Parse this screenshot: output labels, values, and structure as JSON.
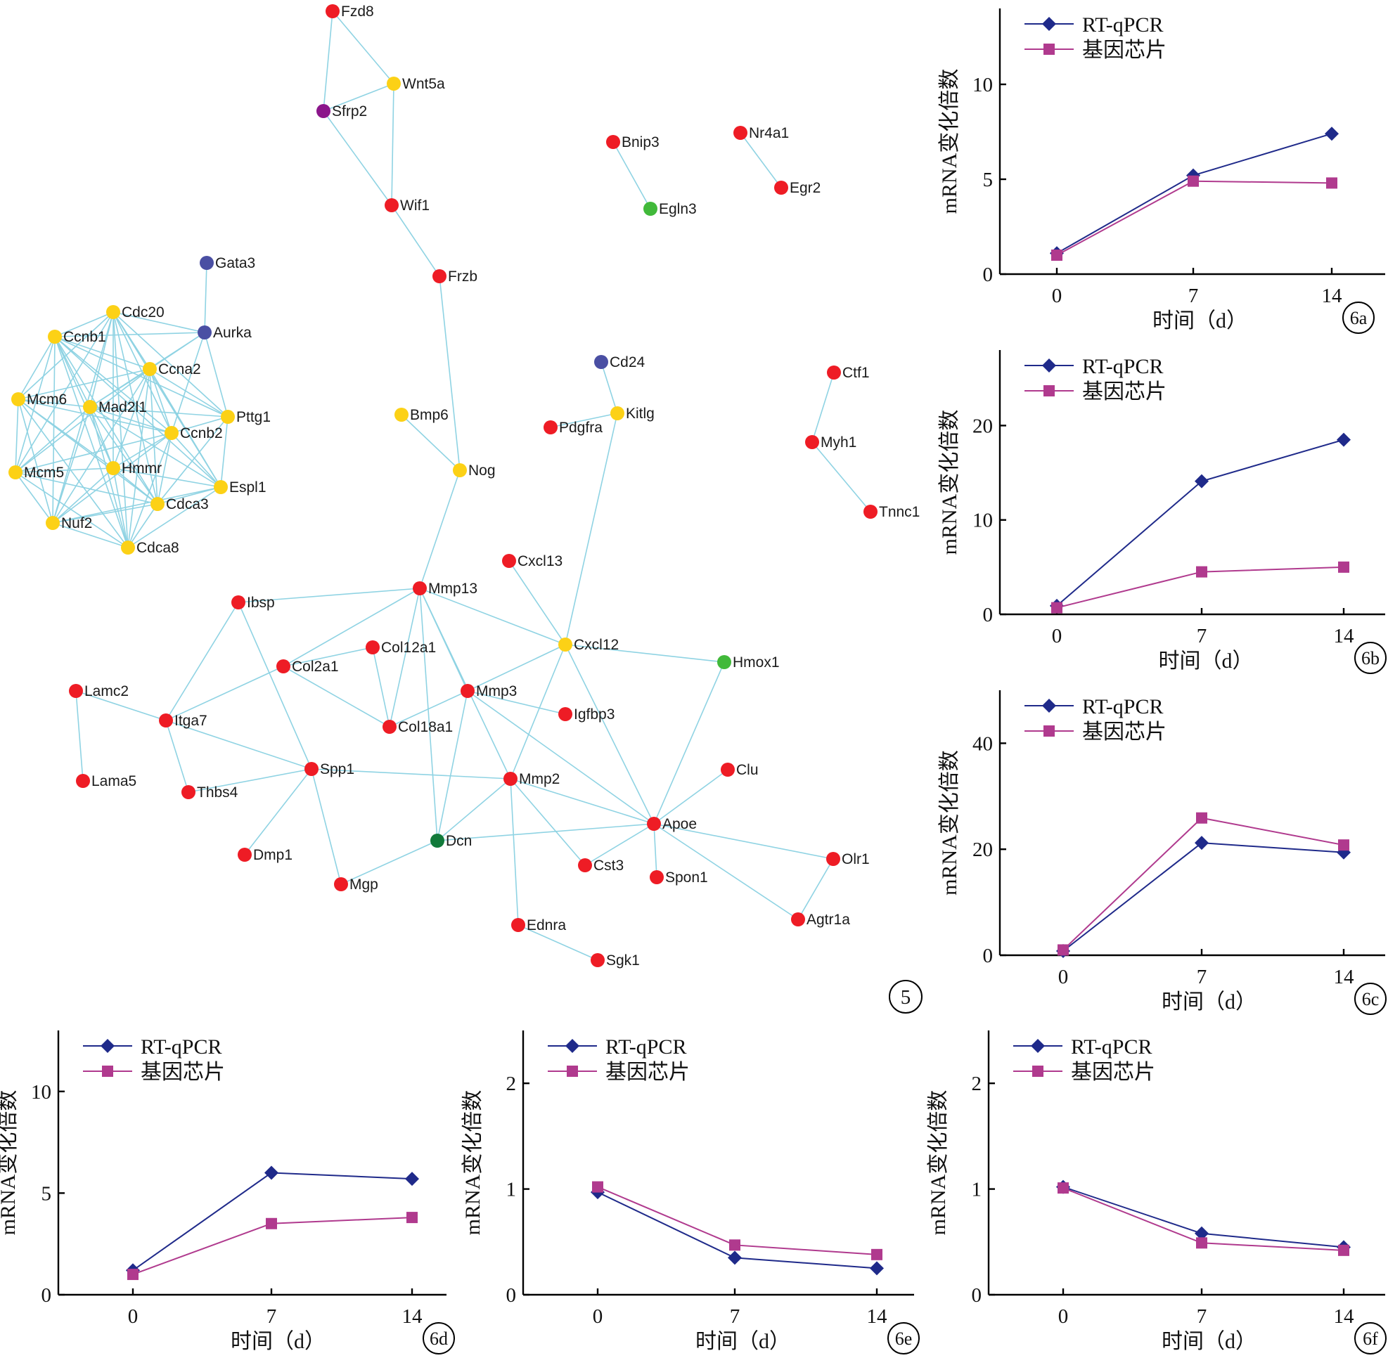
{
  "network": {
    "panel_label": "5",
    "colors": {
      "red": "#ee1c25",
      "yellow": "#fcd116",
      "blue": "#4a4fa3",
      "purple": "#8b168b",
      "green": "#41b93a",
      "darkgreen": "#117a3a",
      "edge": "#8fd3e3"
    },
    "nodes": [
      {
        "id": "Fzd8",
        "color": "red"
      },
      {
        "id": "Wnt5a",
        "color": "yellow"
      },
      {
        "id": "Sfrp2",
        "color": "purple"
      },
      {
        "id": "Wif1",
        "color": "red"
      },
      {
        "id": "Frzb",
        "color": "red"
      },
      {
        "id": "Bnip3",
        "color": "red"
      },
      {
        "id": "Egln3",
        "color": "green"
      },
      {
        "id": "Nr4a1",
        "color": "red"
      },
      {
        "id": "Egr2",
        "color": "red"
      },
      {
        "id": "Gata3",
        "color": "blue"
      },
      {
        "id": "Aurka",
        "color": "blue"
      },
      {
        "id": "Cdc20",
        "color": "yellow"
      },
      {
        "id": "Ccnb1",
        "color": "yellow"
      },
      {
        "id": "Ccna2",
        "color": "yellow"
      },
      {
        "id": "Mcm6",
        "color": "yellow"
      },
      {
        "id": "Mad2l1",
        "color": "yellow"
      },
      {
        "id": "Pttg1",
        "color": "yellow"
      },
      {
        "id": "Ccnb2",
        "color": "yellow"
      },
      {
        "id": "Mcm5",
        "color": "yellow"
      },
      {
        "id": "Hmmr",
        "color": "yellow"
      },
      {
        "id": "Espl1",
        "color": "yellow"
      },
      {
        "id": "Cdca3",
        "color": "yellow"
      },
      {
        "id": "Nuf2",
        "color": "yellow"
      },
      {
        "id": "Cdca8",
        "color": "yellow"
      },
      {
        "id": "Cd24",
        "color": "blue"
      },
      {
        "id": "Kitlg",
        "color": "yellow"
      },
      {
        "id": "Pdgfra",
        "color": "red"
      },
      {
        "id": "Bmp6",
        "color": "yellow"
      },
      {
        "id": "Nog",
        "color": "yellow"
      },
      {
        "id": "Ctf1",
        "color": "red"
      },
      {
        "id": "Myh1",
        "color": "red"
      },
      {
        "id": "Tnnc1",
        "color": "red"
      },
      {
        "id": "Cxcl13",
        "color": "red"
      },
      {
        "id": "Ibsp",
        "color": "red"
      },
      {
        "id": "Mmp13",
        "color": "red"
      },
      {
        "id": "Col12a1",
        "color": "red"
      },
      {
        "id": "Cxcl12",
        "color": "yellow"
      },
      {
        "id": "Col2a1",
        "color": "red"
      },
      {
        "id": "Hmox1",
        "color": "green"
      },
      {
        "id": "Lamc2",
        "color": "red"
      },
      {
        "id": "Mmp3",
        "color": "red"
      },
      {
        "id": "Itga7",
        "color": "red"
      },
      {
        "id": "Igfbp3",
        "color": "red"
      },
      {
        "id": "Col18a1",
        "color": "red"
      },
      {
        "id": "Clu",
        "color": "red"
      },
      {
        "id": "Spp1",
        "color": "red"
      },
      {
        "id": "Lama5",
        "color": "red"
      },
      {
        "id": "Mmp2",
        "color": "red"
      },
      {
        "id": "Thbs4",
        "color": "red"
      },
      {
        "id": "Apoe",
        "color": "red"
      },
      {
        "id": "Dcn",
        "color": "darkgreen"
      },
      {
        "id": "Dmp1",
        "color": "red"
      },
      {
        "id": "Olr1",
        "color": "red"
      },
      {
        "id": "Cst3",
        "color": "red"
      },
      {
        "id": "Spon1",
        "color": "red"
      },
      {
        "id": "Mgp",
        "color": "red"
      },
      {
        "id": "Agtr1a",
        "color": "red"
      },
      {
        "id": "Ednra",
        "color": "red"
      },
      {
        "id": "Sgk1",
        "color": "red"
      }
    ],
    "edges": [
      [
        "Fzd8",
        "Wnt5a"
      ],
      [
        "Fzd8",
        "Sfrp2"
      ],
      [
        "Sfrp2",
        "Wnt5a"
      ],
      [
        "Sfrp2",
        "Wif1"
      ],
      [
        "Wnt5a",
        "Wif1"
      ],
      [
        "Wif1",
        "Frzb"
      ],
      [
        "Frzb",
        "Nog"
      ],
      [
        "Bnip3",
        "Egln3"
      ],
      [
        "Nr4a1",
        "Egr2"
      ],
      [
        "Gata3",
        "Aurka"
      ],
      [
        "Cd24",
        "Kitlg"
      ],
      [
        "Pdgfra",
        "Kitlg"
      ],
      [
        "Kitlg",
        "Cxcl12"
      ],
      [
        "Bmp6",
        "Nog"
      ],
      [
        "Nog",
        "Mmp13"
      ],
      [
        "Ctf1",
        "Myh1"
      ],
      [
        "Myh1",
        "Tnnc1"
      ],
      [
        "Cxcl13",
        "Cxcl12"
      ],
      [
        "Ibsp",
        "Mmp13"
      ],
      [
        "Ibsp",
        "Itga7"
      ],
      [
        "Ibsp",
        "Spp1"
      ],
      [
        "Mmp13",
        "Cxcl12"
      ],
      [
        "Mmp13",
        "Col2a1"
      ],
      [
        "Mmp13",
        "Col18a1"
      ],
      [
        "Mmp13",
        "Mmp3"
      ],
      [
        "Mmp13",
        "Dcn"
      ],
      [
        "Mmp13",
        "Mmp2"
      ],
      [
        "Col12a1",
        "Col2a1"
      ],
      [
        "Col12a1",
        "Col18a1"
      ],
      [
        "Cxcl12",
        "Mmp3"
      ],
      [
        "Cxcl12",
        "Hmox1"
      ],
      [
        "Cxcl12",
        "Apoe"
      ],
      [
        "Cxcl12",
        "Mmp2"
      ],
      [
        "Col2a1",
        "Itga7"
      ],
      [
        "Col2a1",
        "Col18a1"
      ],
      [
        "Hmox1",
        "Apoe"
      ],
      [
        "Lamc2",
        "Itga7"
      ],
      [
        "Lamc2",
        "Lama5"
      ],
      [
        "Mmp3",
        "Igfbp3"
      ],
      [
        "Mmp3",
        "Col18a1"
      ],
      [
        "Mmp3",
        "Apoe"
      ],
      [
        "Mmp3",
        "Dcn"
      ],
      [
        "Itga7",
        "Spp1"
      ],
      [
        "Itga7",
        "Thbs4"
      ],
      [
        "Clu",
        "Apoe"
      ],
      [
        "Spp1",
        "Mmp2"
      ],
      [
        "Spp1",
        "Thbs4"
      ],
      [
        "Spp1",
        "Dmp1"
      ],
      [
        "Spp1",
        "Mgp"
      ],
      [
        "Mmp2",
        "Apoe"
      ],
      [
        "Mmp2",
        "Cst3"
      ],
      [
        "Mmp2",
        "Ednra"
      ],
      [
        "Mmp2",
        "Dcn"
      ],
      [
        "Apoe",
        "Dcn"
      ],
      [
        "Apoe",
        "Olr1"
      ],
      [
        "Apoe",
        "Spon1"
      ],
      [
        "Apoe",
        "Agtr1a"
      ],
      [
        "Apoe",
        "Cst3"
      ],
      [
        "Dcn",
        "Mgp"
      ],
      [
        "Olr1",
        "Agtr1a"
      ],
      [
        "Ednra",
        "Sgk1"
      ],
      [
        "Cdc20",
        "Ccnb1"
      ],
      [
        "Cdc20",
        "Ccna2"
      ],
      [
        "Cdc20",
        "Mcm6"
      ],
      [
        "Cdc20",
        "Mad2l1"
      ],
      [
        "Cdc20",
        "Pttg1"
      ],
      [
        "Cdc20",
        "Ccnb2"
      ],
      [
        "Cdc20",
        "Mcm5"
      ],
      [
        "Cdc20",
        "Hmmr"
      ],
      [
        "Cdc20",
        "Espl1"
      ],
      [
        "Cdc20",
        "Cdca3"
      ],
      [
        "Cdc20",
        "Nuf2"
      ],
      [
        "Cdc20",
        "Cdca8"
      ],
      [
        "Cdc20",
        "Aurka"
      ],
      [
        "Ccnb1",
        "Ccna2"
      ],
      [
        "Ccnb1",
        "Mcm6"
      ],
      [
        "Ccnb1",
        "Mad2l1"
      ],
      [
        "Ccnb1",
        "Pttg1"
      ],
      [
        "Ccnb1",
        "Ccnb2"
      ],
      [
        "Ccnb1",
        "Mcm5"
      ],
      [
        "Ccnb1",
        "Hmmr"
      ],
      [
        "Ccnb1",
        "Espl1"
      ],
      [
        "Ccnb1",
        "Cdca3"
      ],
      [
        "Ccnb1",
        "Nuf2"
      ],
      [
        "Ccnb1",
        "Cdca8"
      ],
      [
        "Ccnb1",
        "Aurka"
      ],
      [
        "Ccna2",
        "Mcm6"
      ],
      [
        "Ccna2",
        "Mad2l1"
      ],
      [
        "Ccna2",
        "Pttg1"
      ],
      [
        "Ccna2",
        "Ccnb2"
      ],
      [
        "Ccna2",
        "Mcm5"
      ],
      [
        "Ccna2",
        "Hmmr"
      ],
      [
        "Ccna2",
        "Espl1"
      ],
      [
        "Ccna2",
        "Cdca3"
      ],
      [
        "Ccna2",
        "Nuf2"
      ],
      [
        "Ccna2",
        "Cdca8"
      ],
      [
        "Ccna2",
        "Aurka"
      ],
      [
        "Mcm6",
        "Mad2l1"
      ],
      [
        "Mcm6",
        "Ccnb2"
      ],
      [
        "Mcm6",
        "Mcm5"
      ],
      [
        "Mcm6",
        "Hmmr"
      ],
      [
        "Mcm6",
        "Cdca3"
      ],
      [
        "Mcm6",
        "Nuf2"
      ],
      [
        "Mcm6",
        "Cdca8"
      ],
      [
        "Mad2l1",
        "Pttg1"
      ],
      [
        "Mad2l1",
        "Ccnb2"
      ],
      [
        "Mad2l1",
        "Mcm5"
      ],
      [
        "Mad2l1",
        "Hmmr"
      ],
      [
        "Mad2l1",
        "Espl1"
      ],
      [
        "Mad2l1",
        "Cdca3"
      ],
      [
        "Mad2l1",
        "Nuf2"
      ],
      [
        "Mad2l1",
        "Cdca8"
      ],
      [
        "Mad2l1",
        "Aurka"
      ],
      [
        "Pttg1",
        "Ccnb2"
      ],
      [
        "Pttg1",
        "Espl1"
      ],
      [
        "Pttg1",
        "Cdca3"
      ],
      [
        "Pttg1",
        "Aurka"
      ],
      [
        "Ccnb2",
        "Mcm5"
      ],
      [
        "Ccnb2",
        "Hmmr"
      ],
      [
        "Ccnb2",
        "Espl1"
      ],
      [
        "Ccnb2",
        "Cdca3"
      ],
      [
        "Ccnb2",
        "Nuf2"
      ],
      [
        "Ccnb2",
        "Cdca8"
      ],
      [
        "Ccnb2",
        "Aurka"
      ],
      [
        "Mcm5",
        "Hmmr"
      ],
      [
        "Mcm5",
        "Nuf2"
      ],
      [
        "Mcm5",
        "Cdca8"
      ],
      [
        "Mcm5",
        "Cdca3"
      ],
      [
        "Hmmr",
        "Espl1"
      ],
      [
        "Hmmr",
        "Cdca3"
      ],
      [
        "Hmmr",
        "Nuf2"
      ],
      [
        "Hmmr",
        "Cdca8"
      ],
      [
        "Espl1",
        "Cdca3"
      ],
      [
        "Espl1",
        "Cdca8"
      ],
      [
        "Espl1",
        "Nuf2"
      ],
      [
        "Cdca3",
        "Nuf2"
      ],
      [
        "Cdca3",
        "Cdca8"
      ],
      [
        "Nuf2",
        "Cdca8"
      ]
    ]
  },
  "chart_data": [
    {
      "type": "line",
      "panel_label": "6a",
      "x": [
        "0",
        "7",
        "14"
      ],
      "ylabel": "mRNA变化倍数",
      "xlabel": "时间（d）",
      "yticks": [
        0,
        5,
        10
      ],
      "ylim": [
        0,
        14
      ],
      "legend_position": "top-left",
      "series": [
        {
          "name": "RT-qPCR",
          "values": [
            1.1,
            5.2,
            7.4
          ],
          "color": "#1f2a8a",
          "marker": "diamond"
        },
        {
          "name": "基因芯片",
          "values": [
            1.0,
            4.9,
            4.8
          ],
          "color": "#b03a8e",
          "marker": "square"
        }
      ]
    },
    {
      "type": "line",
      "panel_label": "6b",
      "x": [
        "0",
        "7",
        "14"
      ],
      "ylabel": "mRNA变化倍数",
      "xlabel": "时间（d）",
      "yticks": [
        0,
        10,
        20
      ],
      "ylim": [
        0,
        28
      ],
      "legend_position": "top-left",
      "series": [
        {
          "name": "RT-qPCR",
          "values": [
            0.9,
            14.1,
            18.5
          ],
          "color": "#1f2a8a",
          "marker": "diamond"
        },
        {
          "name": "基因芯片",
          "values": [
            0.7,
            4.5,
            5.0
          ],
          "color": "#b03a8e",
          "marker": "square"
        }
      ]
    },
    {
      "type": "line",
      "panel_label": "6c",
      "x": [
        "0",
        "7",
        "14"
      ],
      "ylabel": "mRNA变化倍数",
      "xlabel": "时间（d）",
      "yticks": [
        0,
        20,
        40
      ],
      "ylim": [
        0,
        50
      ],
      "legend_position": "top-left",
      "series": [
        {
          "name": "RT-qPCR",
          "values": [
            0.8,
            21.2,
            19.4
          ],
          "color": "#1f2a8a",
          "marker": "diamond"
        },
        {
          "name": "基因芯片",
          "values": [
            1.0,
            25.9,
            20.8
          ],
          "color": "#b03a8e",
          "marker": "square"
        }
      ]
    },
    {
      "type": "line",
      "panel_label": "6d",
      "x": [
        "0",
        "7",
        "14"
      ],
      "ylabel": "mRNA变化倍数",
      "xlabel": "时间（d）",
      "yticks": [
        0,
        5,
        10
      ],
      "ylim": [
        0,
        13
      ],
      "legend_position": "top-left",
      "series": [
        {
          "name": "RT-qPCR",
          "values": [
            1.2,
            6.0,
            5.7
          ],
          "color": "#1f2a8a",
          "marker": "diamond"
        },
        {
          "name": "基因芯片",
          "values": [
            1.0,
            3.5,
            3.8
          ],
          "color": "#b03a8e",
          "marker": "square"
        }
      ]
    },
    {
      "type": "line",
      "panel_label": "6e",
      "x": [
        "0",
        "7",
        "14"
      ],
      "ylabel": "mRNA变化倍数",
      "xlabel": "时间（d）",
      "yticks": [
        0,
        1,
        2
      ],
      "ylim": [
        0,
        2.5
      ],
      "legend_position": "top-left",
      "series": [
        {
          "name": "RT-qPCR",
          "values": [
            0.97,
            0.35,
            0.25
          ],
          "color": "#1f2a8a",
          "marker": "diamond"
        },
        {
          "name": "基因芯片",
          "values": [
            1.02,
            0.47,
            0.38
          ],
          "color": "#b03a8e",
          "marker": "square"
        }
      ]
    },
    {
      "type": "line",
      "panel_label": "6f",
      "x": [
        "0",
        "7",
        "14"
      ],
      "ylabel": "mRNA变化倍数",
      "xlabel": "时间（d）",
      "yticks": [
        0,
        1,
        2
      ],
      "ylim": [
        0,
        2.5
      ],
      "legend_position": "top-left",
      "series": [
        {
          "name": "RT-qPCR",
          "values": [
            1.02,
            0.58,
            0.45
          ],
          "color": "#1f2a8a",
          "marker": "diamond"
        },
        {
          "name": "基因芯片",
          "values": [
            1.01,
            0.49,
            0.42
          ],
          "color": "#b03a8e",
          "marker": "square"
        }
      ]
    }
  ]
}
